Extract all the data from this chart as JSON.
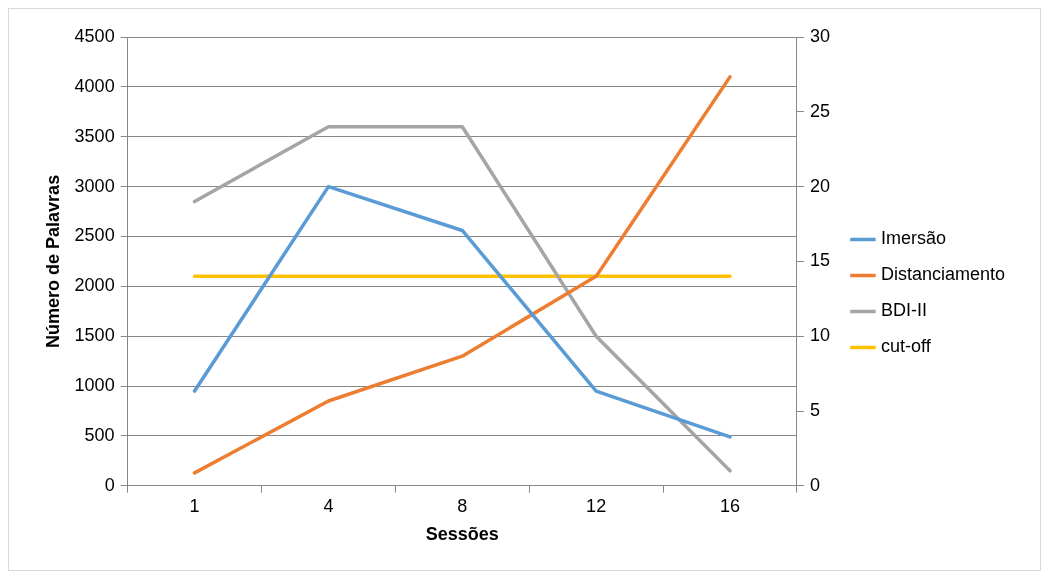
{
  "chart_data": {
    "type": "line",
    "xlabel": "Sessões",
    "ylabel": "Número de Palavras",
    "categories": [
      "1",
      "4",
      "8",
      "12",
      "16"
    ],
    "ylim": [
      0,
      4500
    ],
    "yticks": [
      0,
      500,
      1000,
      1500,
      2000,
      2500,
      3000,
      3500,
      4000,
      4500
    ],
    "y2lim": [
      0,
      30
    ],
    "y2ticks": [
      0,
      5,
      10,
      15,
      20,
      25,
      30
    ],
    "grid": "y",
    "legend": "right",
    "marker": "none",
    "line_style": "solid",
    "series": [
      {
        "name": "Imersão",
        "color": "#5b9bd5",
        "values": [
          950,
          3000,
          2560,
          950,
          490
        ]
      },
      {
        "name": "Distanciamento",
        "color": "#ed7d31",
        "values": [
          130,
          850,
          1300,
          2100,
          4100
        ]
      },
      {
        "name": "BDI-II",
        "color": "#a5a5a5",
        "axis": "y2",
        "values": [
          19,
          24,
          24,
          10,
          1
        ]
      },
      {
        "name": "cut-off",
        "color": "#ffc000",
        "axis": "y2",
        "values": [
          14,
          14,
          14,
          14,
          14
        ]
      }
    ]
  }
}
